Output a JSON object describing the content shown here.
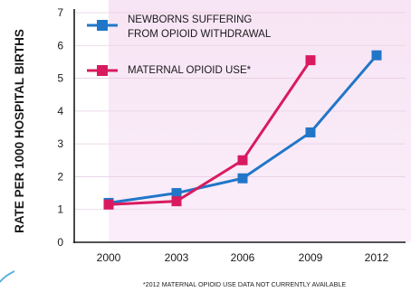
{
  "chart_data": {
    "type": "line",
    "ylabel": "RATE PER 1000 HOSPITAL BIRTHS",
    "xlabel": "",
    "ylim": [
      0,
      7
    ],
    "yticks": [
      0,
      1,
      2,
      3,
      4,
      5,
      6,
      7
    ],
    "xticks": [
      "2000",
      "2003",
      "2006",
      "2009",
      "2012"
    ],
    "shaded_region_from_x": 2000,
    "legend_position": "top",
    "footnote": "*2012 MATERNAL OPIOID USE DATA NOT CURRENTLY AVAILABLE",
    "series": [
      {
        "name": "NEWBORNS SUFFERING FROM OPIOID WITHDRAWAL",
        "name_lines": [
          "NEWBORNS SUFFERING",
          "FROM OPIOID WITHDRAWAL"
        ],
        "color": "#2176c7",
        "x": [
          2000,
          2003,
          2006,
          2009,
          2012
        ],
        "values": [
          1.2,
          1.5,
          1.95,
          3.35,
          5.7
        ]
      },
      {
        "name": "MATERNAL OPIOID USE*",
        "name_lines": [
          "MATERNAL OPIOID USE*"
        ],
        "color": "#d81b5f",
        "x": [
          2000,
          2003,
          2006,
          2009
        ],
        "values": [
          1.15,
          1.25,
          2.5,
          5.55
        ]
      }
    ]
  }
}
